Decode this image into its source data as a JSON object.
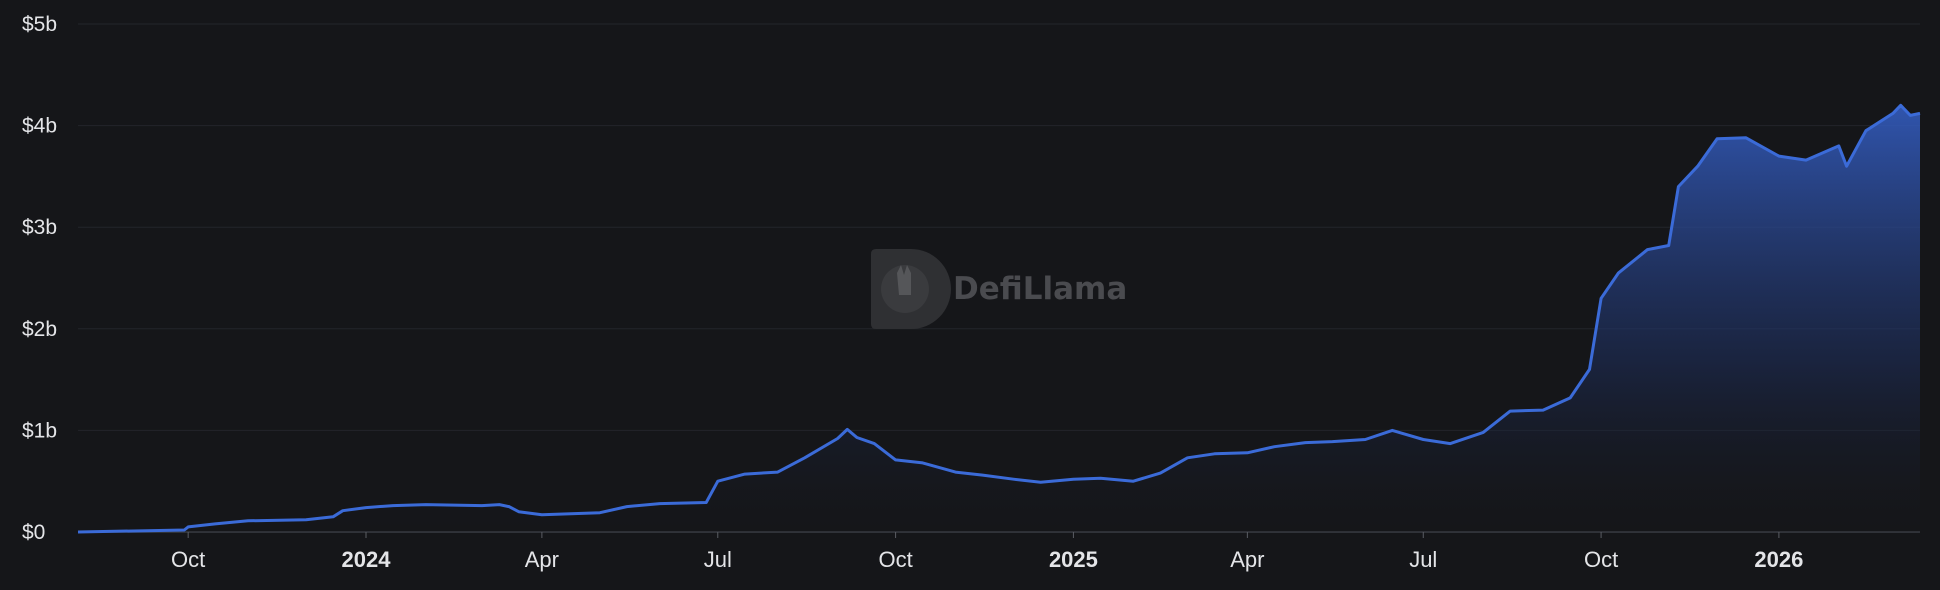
{
  "chart_data": {
    "type": "area",
    "watermark": "DefiLlama",
    "y_ticks": [
      "$0",
      "$1b",
      "$2b",
      "$3b",
      "$4b",
      "$5b"
    ],
    "ylim": [
      0,
      5
    ],
    "y_unit": "billions USD",
    "x_ticks": [
      {
        "label": "Oct",
        "date": "2023-10-01",
        "bold": false
      },
      {
        "label": "2024",
        "date": "2024-01-01",
        "bold": true
      },
      {
        "label": "Apr",
        "date": "2024-04-01",
        "bold": false
      },
      {
        "label": "Jul",
        "date": "2024-07-01",
        "bold": false
      },
      {
        "label": "Oct",
        "date": "2024-10-01",
        "bold": false
      },
      {
        "label": "2025",
        "date": "2025-01-01",
        "bold": true
      },
      {
        "label": "Apr",
        "date": "2025-04-01",
        "bold": false
      },
      {
        "label": "Jul",
        "date": "2025-07-01",
        "bold": false
      },
      {
        "label": "Oct",
        "date": "2025-10-01",
        "bold": false
      },
      {
        "label": "2026",
        "date": "2026-01-01",
        "bold": true
      }
    ],
    "xlim": [
      "2023-08-05",
      "2026-03-15"
    ],
    "line_color": "#3b6bd8",
    "points": [
      [
        "2023-08-05",
        0.0
      ],
      [
        "2023-09-29",
        0.02
      ],
      [
        "2023-10-01",
        0.05
      ],
      [
        "2023-10-15",
        0.08
      ],
      [
        "2023-11-01",
        0.11
      ],
      [
        "2023-12-01",
        0.12
      ],
      [
        "2023-12-15",
        0.15
      ],
      [
        "2023-12-20",
        0.21
      ],
      [
        "2024-01-01",
        0.24
      ],
      [
        "2024-01-15",
        0.26
      ],
      [
        "2024-02-01",
        0.27
      ],
      [
        "2024-03-01",
        0.26
      ],
      [
        "2024-03-10",
        0.27
      ],
      [
        "2024-03-15",
        0.25
      ],
      [
        "2024-03-20",
        0.2
      ],
      [
        "2024-04-01",
        0.17
      ],
      [
        "2024-05-01",
        0.19
      ],
      [
        "2024-05-15",
        0.25
      ],
      [
        "2024-06-01",
        0.28
      ],
      [
        "2024-06-25",
        0.29
      ],
      [
        "2024-07-01",
        0.5
      ],
      [
        "2024-07-15",
        0.57
      ],
      [
        "2024-08-01",
        0.59
      ],
      [
        "2024-08-15",
        0.73
      ],
      [
        "2024-09-01",
        0.92
      ],
      [
        "2024-09-06",
        1.01
      ],
      [
        "2024-09-11",
        0.93
      ],
      [
        "2024-09-20",
        0.87
      ],
      [
        "2024-10-01",
        0.71
      ],
      [
        "2024-10-15",
        0.68
      ],
      [
        "2024-11-01",
        0.59
      ],
      [
        "2024-11-15",
        0.56
      ],
      [
        "2024-12-01",
        0.52
      ],
      [
        "2024-12-15",
        0.49
      ],
      [
        "2025-01-01",
        0.52
      ],
      [
        "2025-01-15",
        0.53
      ],
      [
        "2025-02-01",
        0.5
      ],
      [
        "2025-02-15",
        0.58
      ],
      [
        "2025-03-01",
        0.73
      ],
      [
        "2025-03-15",
        0.77
      ],
      [
        "2025-04-01",
        0.78
      ],
      [
        "2025-04-15",
        0.84
      ],
      [
        "2025-05-01",
        0.88
      ],
      [
        "2025-05-15",
        0.89
      ],
      [
        "2025-06-01",
        0.91
      ],
      [
        "2025-06-15",
        1.0
      ],
      [
        "2025-07-01",
        0.91
      ],
      [
        "2025-07-15",
        0.87
      ],
      [
        "2025-08-01",
        0.98
      ],
      [
        "2025-08-15",
        1.19
      ],
      [
        "2025-09-01",
        1.2
      ],
      [
        "2025-09-15",
        1.32
      ],
      [
        "2025-09-25",
        1.6
      ],
      [
        "2025-10-01",
        2.3
      ],
      [
        "2025-10-10",
        2.55
      ],
      [
        "2025-10-25",
        2.78
      ],
      [
        "2025-11-05",
        2.82
      ],
      [
        "2025-11-10",
        3.4
      ],
      [
        "2025-11-20",
        3.6
      ],
      [
        "2025-11-30",
        3.87
      ],
      [
        "2025-12-15",
        3.88
      ],
      [
        "2026-01-01",
        3.7
      ],
      [
        "2026-01-15",
        3.66
      ],
      [
        "2026-02-01",
        3.8
      ],
      [
        "2026-02-05",
        3.6
      ],
      [
        "2026-02-15",
        3.95
      ],
      [
        "2026-03-01",
        4.12
      ],
      [
        "2026-03-05",
        4.2
      ],
      [
        "2026-03-10",
        4.1
      ],
      [
        "2026-03-15",
        4.12
      ]
    ]
  }
}
